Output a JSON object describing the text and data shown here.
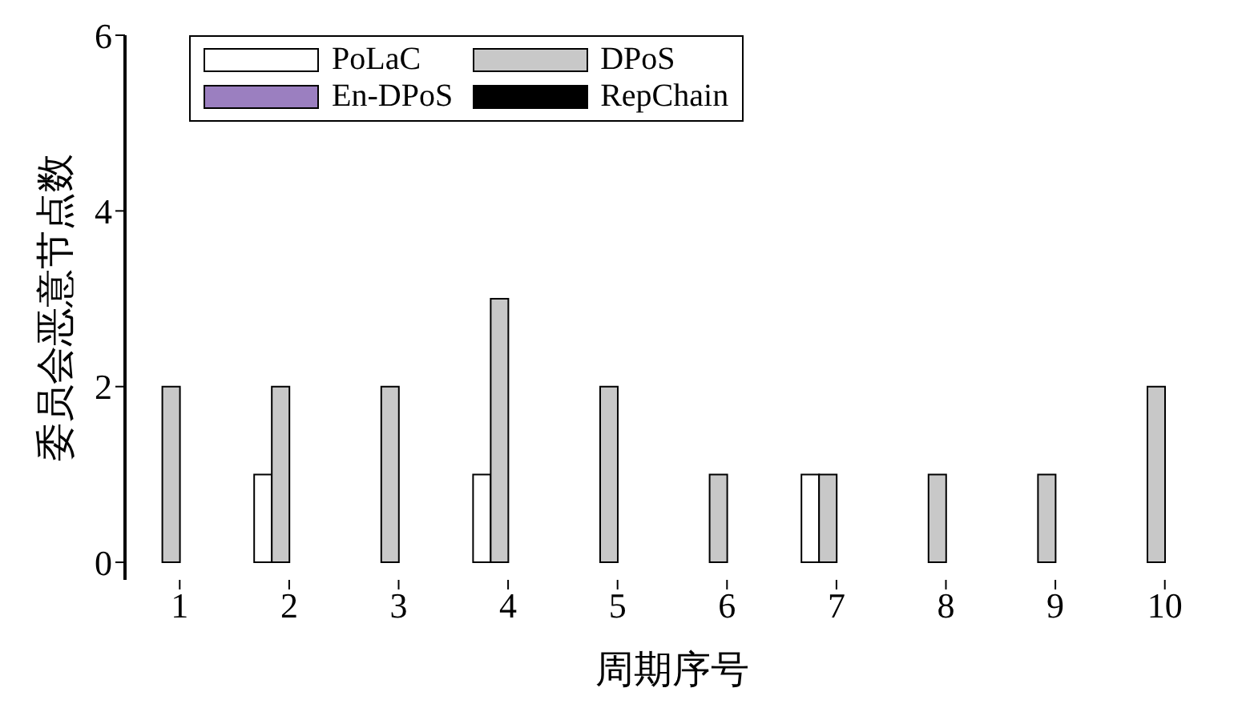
{
  "chart_data": {
    "type": "bar",
    "xlabel": "周期序号",
    "ylabel": "委员会恶意节点数",
    "categories": [
      "1",
      "2",
      "3",
      "4",
      "5",
      "6",
      "7",
      "8",
      "9",
      "10"
    ],
    "series": [
      {
        "name": "PoLaC",
        "color": "#ffffff",
        "values": [
          0,
          1,
          0,
          1,
          0,
          0,
          1,
          0,
          0,
          0
        ]
      },
      {
        "name": "DPoS",
        "color": "#c8c8c8",
        "values": [
          2,
          2,
          2,
          3,
          2,
          1,
          1,
          1,
          1,
          2
        ]
      },
      {
        "name": "En-DPoS",
        "color": "#9b7fc0",
        "values": [
          0,
          0,
          0,
          0,
          0,
          0,
          0,
          0,
          0,
          0
        ]
      },
      {
        "name": "RepChain",
        "color": "#000000",
        "values": [
          0,
          0,
          0,
          0,
          0,
          0,
          0,
          0,
          0,
          0
        ]
      }
    ],
    "ylim": [
      -0.2,
      6
    ],
    "yticks": [
      0,
      2,
      4,
      6
    ],
    "legend": "top left"
  }
}
